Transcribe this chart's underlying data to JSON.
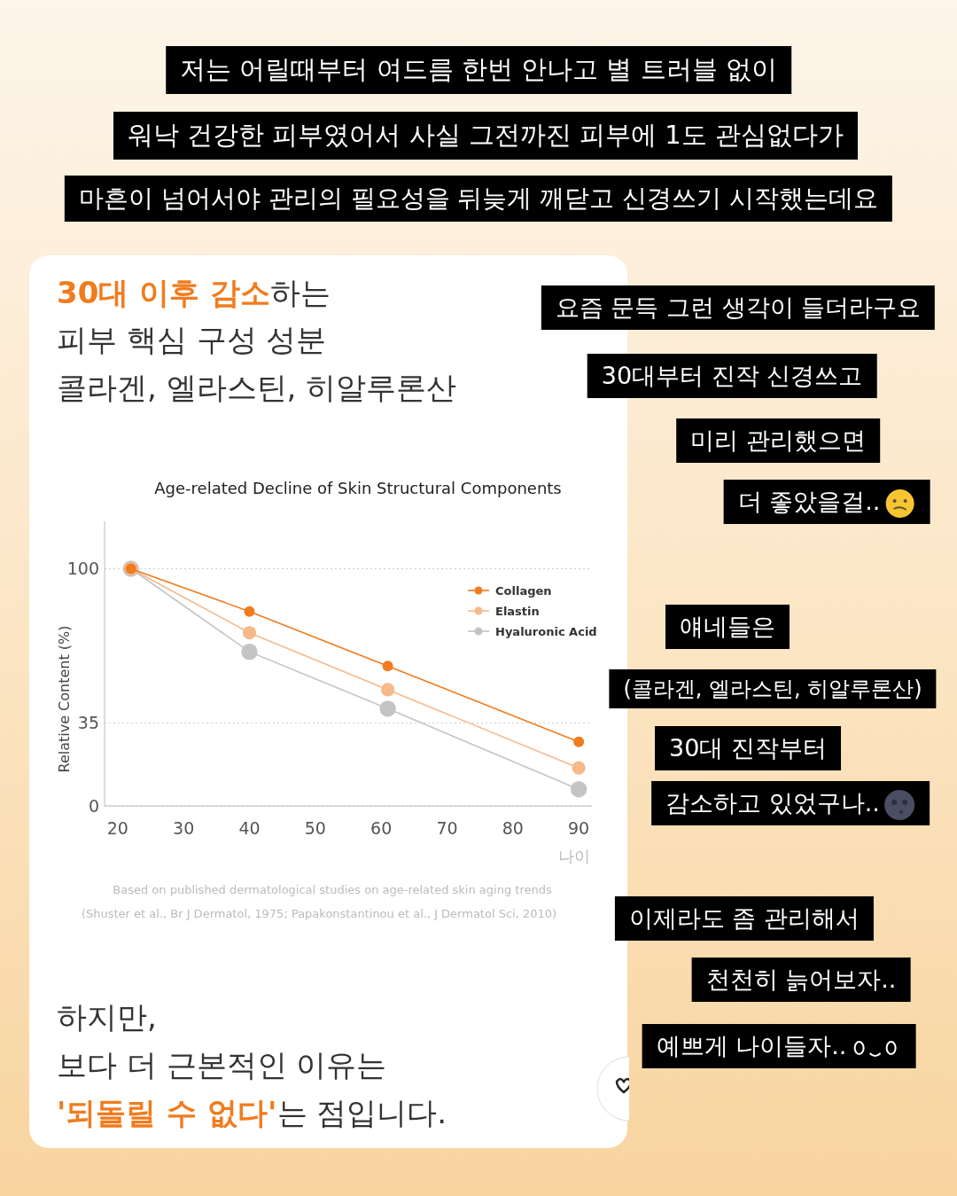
{
  "chart_data": {
    "type": "line",
    "title": "Age-related Decline of Skin Structural Components",
    "xlabel": "나이",
    "ylabel": "Relative Content (%)",
    "series": [
      {
        "name": "Collagen",
        "color": "#f07c1e",
        "x": [
          22,
          40,
          61,
          90
        ],
        "values": [
          100,
          82,
          59,
          27
        ]
      },
      {
        "name": "Elastin",
        "color": "#f5b98a",
        "x": [
          22,
          40,
          61,
          90
        ],
        "values": [
          100,
          73,
          49,
          16
        ]
      },
      {
        "name": "Hyaluronic Acid",
        "color": "#c4c4c4",
        "x": [
          22,
          40,
          61,
          90
        ],
        "values": [
          100,
          65,
          41,
          7
        ]
      }
    ],
    "xlim": [
      18,
      92
    ],
    "xticks": [
      20,
      30,
      40,
      50,
      60,
      70,
      80,
      90
    ],
    "ylim": [
      0,
      120
    ],
    "yticks": [
      0,
      35,
      100
    ],
    "grid": "y",
    "legend": "top right",
    "marker": "circle",
    "line_style": "solid",
    "annotations": [
      "저는 어릴때부터 여드름 한번 안나고 별 트러블 없이",
      "워낙 건강한 피부였어서 사실  그전까진 피부에 1도 관심없다가",
      "마흔이 넘어서야 관리의 필요성을 뒤늦게 깨닫고 신경쓰기 시작했는데요",
      "30대 이후 감소",
      "하는",
      "피부 핵심 구성 성분",
      "콜라겐, 엘라스틴, 히알루론산",
      "Based on published dermatological studies on age-related skin aging trends",
      "(Shuster et al., Br J Dermatol, 1975; Papakonstantinou et al., J Dermatol Sci, 2010)",
      "하지만,",
      "보다 더 근본적인 이유는",
      "'되돌릴 수 없다'",
      "는 점입니다.",
      "요즘 문득 그런 생각이 들더라구요",
      "30대부터 진작 신경쓰고",
      "미리 관리했으면",
      "더 좋았을걸..",
      "얘네들은",
      "(콜라겐, 엘라스틴, 히알루론산)",
      "30대 진작부터",
      "감소하고 있었구나..",
      "이제라도 좀 관리해서",
      "천천히 늙어보자..",
      "예쁘게 나이들자.."
    ]
  }
}
